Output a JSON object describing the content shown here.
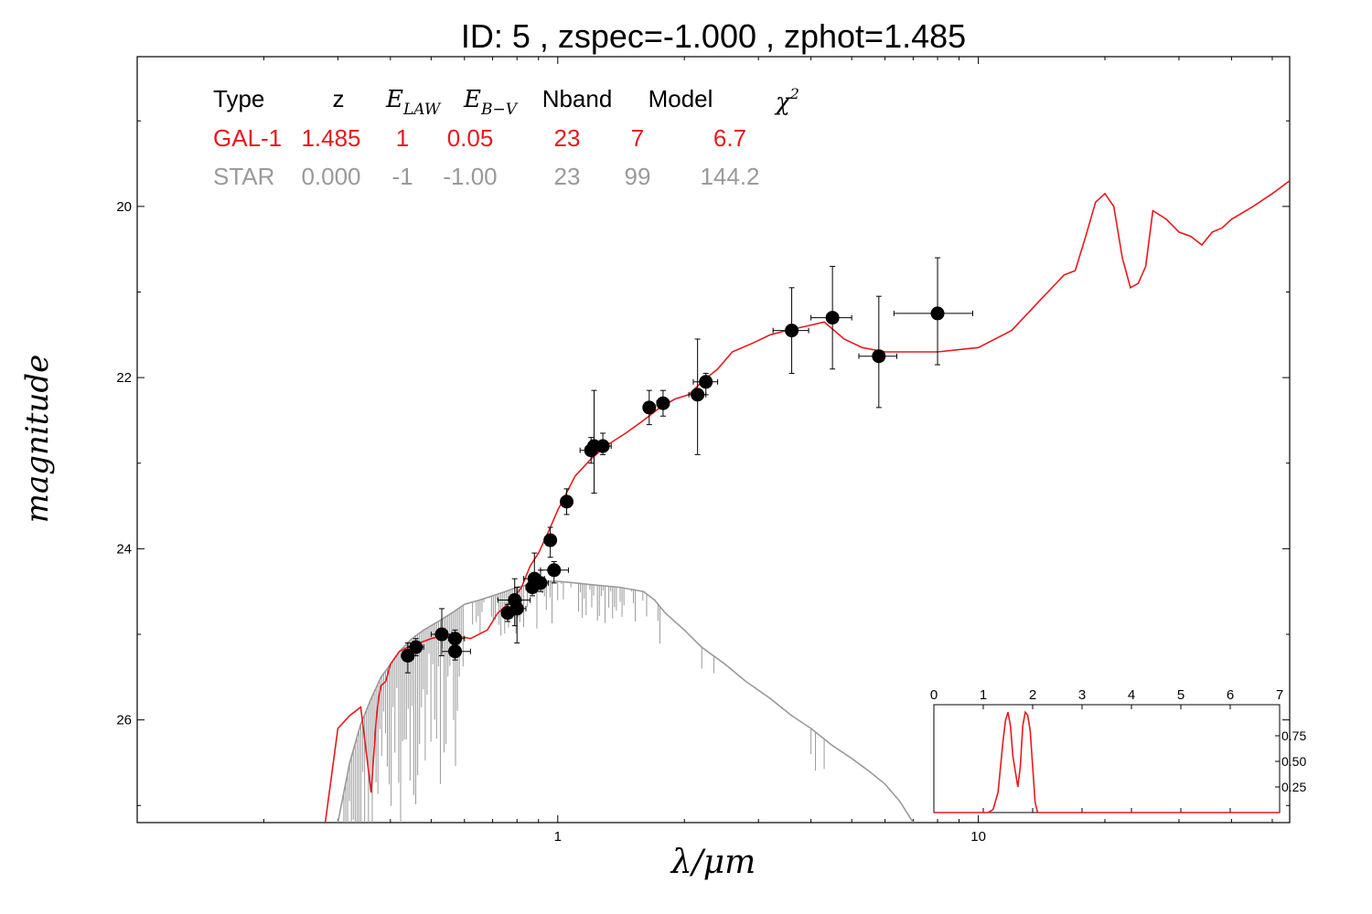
{
  "title": "ID:  5     , zspec=-1.000 , zphot=1.485",
  "colors": {
    "galaxy": "#e8191e",
    "star": "#9a9a9a",
    "points": "#000000",
    "axis": "#000000"
  },
  "chart_data": [
    {
      "type": "scatter",
      "xlabel": "λ/μm",
      "ylabel": "magnitude",
      "xscale": "log",
      "xlim": [
        0.1,
        55
      ],
      "ylim": [
        27.2,
        18.25
      ],
      "x_ticks": [
        {
          "value": 1,
          "label": "1"
        },
        {
          "value": 10,
          "label": "10"
        }
      ],
      "y_ticks": [
        {
          "value": 20,
          "label": "20"
        },
        {
          "value": 22,
          "label": "22"
        },
        {
          "value": 24,
          "label": "24"
        },
        {
          "value": 26,
          "label": "26"
        }
      ],
      "legend_table": {
        "headers": [
          "Type",
          "z",
          "E_LAW",
          "E_B-V",
          "Nband",
          "Model",
          "χ²"
        ],
        "rows": [
          {
            "color": "#e8191e",
            "cells": [
              "GAL-1",
              "1.485",
              "1",
              "0.05",
              "23",
              "7",
              "6.7"
            ]
          },
          {
            "color": "#9a9a9a",
            "cells": [
              "STAR",
              "0.000",
              "-1",
              "-1.00",
              "23",
              "99",
              "144.2"
            ]
          }
        ]
      },
      "observed": [
        {
          "x": 0.44,
          "y": 25.25,
          "xerr": [
            0.43,
            0.455
          ],
          "yerr": [
            25.1,
            25.45
          ]
        },
        {
          "x": 0.46,
          "y": 25.15,
          "xerr": [
            0.44,
            0.48
          ],
          "yerr": [
            25.05,
            25.25
          ]
        },
        {
          "x": 0.53,
          "y": 25.0,
          "xerr": [
            0.5,
            0.56
          ],
          "yerr": [
            24.7,
            25.25
          ]
        },
        {
          "x": 0.57,
          "y": 25.05,
          "xerr": [
            0.55,
            0.6
          ],
          "yerr": [
            24.95,
            25.15
          ]
        },
        {
          "x": 0.57,
          "y": 25.2,
          "xerr": [
            0.53,
            0.62
          ],
          "yerr": [
            25.0,
            25.3
          ]
        },
        {
          "x": 0.76,
          "y": 24.75,
          "xerr": [
            0.74,
            0.79
          ],
          "yerr": [
            24.65,
            24.85
          ]
        },
        {
          "x": 0.79,
          "y": 24.6,
          "xerr": [
            0.72,
            0.86
          ],
          "yerr": [
            24.35,
            24.9
          ]
        },
        {
          "x": 0.8,
          "y": 24.7,
          "xerr": [
            0.76,
            0.84
          ],
          "yerr": [
            24.45,
            25.1
          ]
        },
        {
          "x": 0.87,
          "y": 24.45,
          "xerr": [
            0.84,
            0.9
          ],
          "yerr": [
            24.3,
            24.55
          ]
        },
        {
          "x": 0.88,
          "y": 24.35,
          "xerr": [
            0.83,
            0.93
          ],
          "yerr": [
            24.05,
            24.5
          ]
        },
        {
          "x": 0.91,
          "y": 24.4,
          "xerr": [
            0.87,
            0.95
          ],
          "yerr": [
            24.25,
            24.5
          ]
        },
        {
          "x": 0.96,
          "y": 23.9,
          "xerr": [
            0.94,
            0.98
          ],
          "yerr": [
            23.75,
            24.1
          ]
        },
        {
          "x": 0.98,
          "y": 24.25,
          "xerr": [
            0.91,
            1.06
          ],
          "yerr": [
            24.15,
            24.4
          ]
        },
        {
          "x": 1.05,
          "y": 23.45,
          "xerr": [
            1.03,
            1.07
          ],
          "yerr": [
            23.3,
            23.6
          ]
        },
        {
          "x": 1.2,
          "y": 22.85,
          "xerr": [
            1.13,
            1.27
          ],
          "yerr": [
            22.7,
            23.0
          ]
        },
        {
          "x": 1.22,
          "y": 22.8,
          "xerr": [
            1.2,
            1.24
          ],
          "yerr": [
            22.15,
            23.35
          ]
        },
        {
          "x": 1.28,
          "y": 22.8,
          "xerr": [
            1.22,
            1.34
          ],
          "yerr": [
            22.65,
            22.9
          ]
        },
        {
          "x": 1.65,
          "y": 22.35,
          "xerr": [
            1.6,
            1.7
          ],
          "yerr": [
            22.15,
            22.55
          ]
        },
        {
          "x": 1.78,
          "y": 22.3,
          "xerr": [
            1.72,
            1.84
          ],
          "yerr": [
            22.15,
            22.45
          ]
        },
        {
          "x": 2.15,
          "y": 22.2,
          "xerr": [
            2.05,
            2.25
          ],
          "yerr": [
            21.55,
            22.9
          ]
        },
        {
          "x": 2.25,
          "y": 22.05,
          "xerr": [
            2.1,
            2.4
          ],
          "yerr": [
            21.95,
            22.2
          ]
        },
        {
          "x": 3.6,
          "y": 21.45,
          "xerr": [
            3.25,
            3.95
          ],
          "yerr": [
            20.95,
            21.95
          ]
        },
        {
          "x": 4.5,
          "y": 21.3,
          "xerr": [
            4.0,
            5.0
          ],
          "yerr": [
            20.7,
            21.9
          ]
        },
        {
          "x": 5.8,
          "y": 21.75,
          "xerr": [
            5.2,
            6.4
          ],
          "yerr": [
            21.05,
            22.35
          ]
        },
        {
          "x": 8.0,
          "y": 21.25,
          "xerr": [
            6.3,
            9.7
          ],
          "yerr": [
            20.6,
            21.85
          ]
        }
      ],
      "series": [
        {
          "name": "GAL-1",
          "color": "#e8191e",
          "x": [
            0.28,
            0.3,
            0.32,
            0.34,
            0.36,
            0.37,
            0.375,
            0.38,
            0.39,
            0.4,
            0.42,
            0.44,
            0.5,
            0.55,
            0.62,
            0.68,
            0.72,
            0.78,
            0.82,
            0.86,
            0.9,
            0.95,
            1.0,
            1.1,
            1.2,
            1.3,
            1.45,
            1.6,
            1.75,
            1.9,
            2.05,
            2.2,
            2.4,
            2.6,
            2.9,
            3.2,
            3.5,
            3.9,
            4.3,
            4.8,
            5.3,
            6.0,
            7.0,
            8.0,
            10.0,
            12.0,
            14.0,
            16.0,
            17.0,
            18.0,
            19.0,
            20.0,
            21.0,
            22.0,
            23.0,
            24.0,
            25.0,
            26.0,
            28.0,
            30.0,
            32.0,
            34.0,
            36.0,
            38.0,
            40.0,
            45.0,
            50.0,
            55.0
          ],
          "y": [
            27.2,
            26.1,
            25.95,
            25.85,
            26.85,
            26.0,
            25.75,
            25.6,
            25.55,
            25.35,
            25.2,
            25.15,
            25.05,
            25.0,
            25.05,
            24.95,
            24.75,
            24.6,
            24.45,
            24.2,
            24.05,
            23.8,
            23.55,
            23.15,
            22.95,
            22.8,
            22.65,
            22.5,
            22.35,
            22.25,
            22.2,
            22.05,
            21.9,
            21.7,
            21.6,
            21.5,
            21.45,
            21.4,
            21.35,
            21.55,
            21.65,
            21.7,
            21.7,
            21.7,
            21.65,
            21.45,
            21.1,
            20.8,
            20.75,
            20.35,
            19.95,
            19.85,
            20.0,
            20.6,
            20.95,
            20.9,
            20.7,
            20.05,
            20.15,
            20.3,
            20.35,
            20.45,
            20.3,
            20.25,
            20.15,
            20.0,
            19.85,
            19.7
          ]
        },
        {
          "name": "STAR",
          "color": "#9a9a9a",
          "x": [
            0.3,
            0.32,
            0.34,
            0.36,
            0.38,
            0.4,
            0.42,
            0.45,
            0.48,
            0.52,
            0.56,
            0.6,
            0.65,
            0.7,
            0.75,
            0.8,
            0.85,
            0.9,
            0.95,
            1.0,
            1.1,
            1.2,
            1.4,
            1.6,
            1.7,
            1.8,
            2.0,
            2.2,
            2.5,
            2.8,
            3.2,
            3.6,
            4.0,
            4.5,
            5.0,
            5.5,
            6.0,
            6.5,
            7.0
          ],
          "y": [
            27.2,
            26.5,
            26.05,
            25.75,
            25.5,
            25.35,
            25.2,
            25.05,
            24.95,
            24.85,
            24.75,
            24.65,
            24.6,
            24.55,
            24.5,
            24.45,
            24.42,
            24.4,
            24.38,
            24.38,
            24.4,
            24.42,
            24.45,
            24.5,
            24.6,
            24.75,
            24.95,
            25.15,
            25.35,
            25.55,
            25.75,
            25.95,
            26.1,
            26.3,
            26.45,
            26.6,
            26.75,
            26.95,
            27.2
          ]
        }
      ]
    },
    {
      "type": "line",
      "xlim": [
        0,
        7
      ],
      "ylim": [
        0,
        1
      ],
      "x_ticks": [
        "0",
        "1",
        "2",
        "3",
        "4",
        "5",
        "6",
        "7"
      ],
      "y_ticks": [
        "0.25",
        "0.50",
        "0.75"
      ],
      "series": [
        {
          "color": "#e8191e",
          "x": [
            0,
            1.1,
            1.2,
            1.3,
            1.4,
            1.45,
            1.5,
            1.55,
            1.6,
            1.65,
            1.7,
            1.75,
            1.8,
            1.85,
            1.9,
            1.95,
            2.0,
            2.05,
            2.1,
            7
          ],
          "y": [
            0.0,
            0.0,
            0.03,
            0.2,
            0.7,
            0.9,
            0.98,
            0.85,
            0.55,
            0.4,
            0.25,
            0.45,
            0.85,
            0.98,
            0.95,
            0.8,
            0.45,
            0.1,
            0.0,
            0.0
          ]
        }
      ]
    }
  ]
}
